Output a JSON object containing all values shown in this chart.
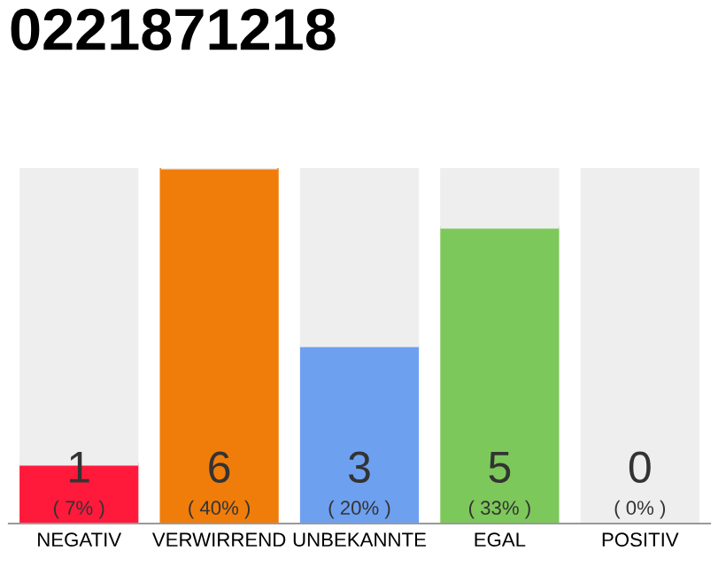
{
  "chart_data": {
    "type": "bar",
    "title": "0221871218",
    "categories": [
      "NEGATIV",
      "VERWIRREND",
      "UNBEKANNTE",
      "EGAL",
      "POSITIV"
    ],
    "stacked": true,
    "ylim": [
      0,
      6
    ],
    "tick_labels": "x",
    "grid": false,
    "series": [
      {
        "colors": [
          "#ff1a3c",
          "#f07d0a",
          "#6ea0f0",
          "#7dc85a",
          "#999999"
        ],
        "values": [
          1,
          6,
          3,
          5,
          0
        ],
        "value_labels": [
          "1\n( 7% )",
          "6\n( 40% )",
          "3\n( 20% )",
          "5\n( 33% )",
          "0\n( 0% )"
        ]
      },
      {
        "color": "#eeeeee",
        "values": [
          5,
          0,
          3,
          1,
          6
        ]
      }
    ]
  }
}
